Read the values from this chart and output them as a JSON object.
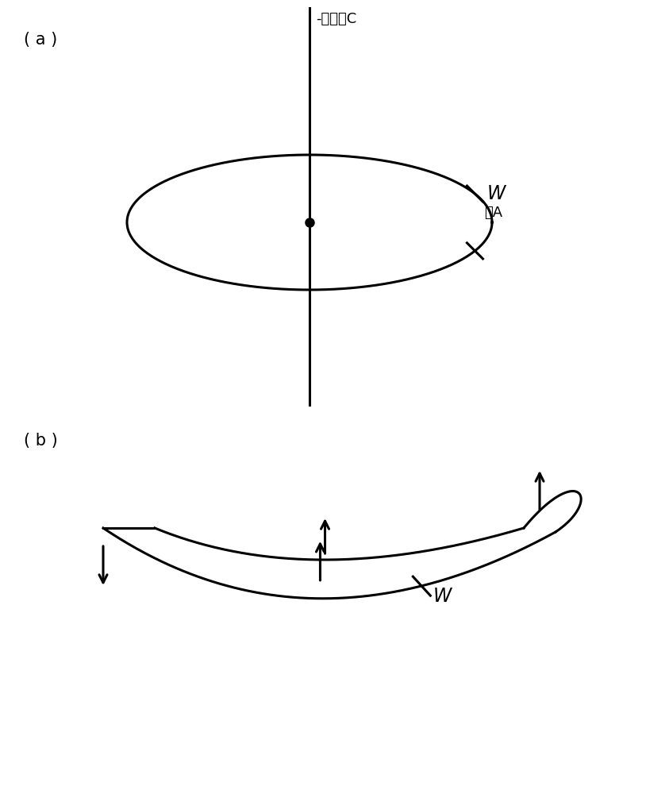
{
  "bg_color": "#ffffff",
  "line_color": "#000000",
  "label_a": "( a )",
  "label_b": "( b )",
  "label_axis_c": "-中心轴C",
  "label_w_a": "W",
  "label_face_a": "面A",
  "label_w_b": "W",
  "font_size_label": 15,
  "font_size_annot": 13,
  "font_size_w": 15
}
